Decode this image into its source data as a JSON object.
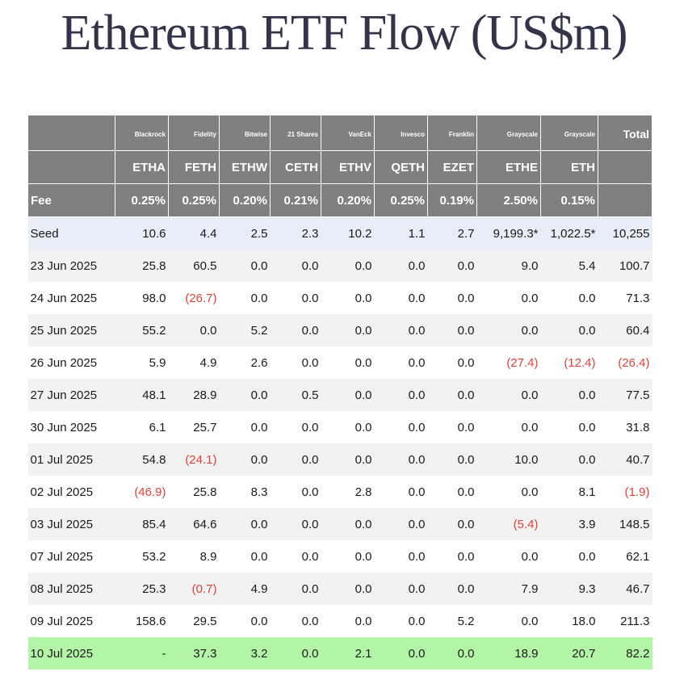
{
  "title": "Ethereum ETF Flow (US$m)",
  "colors": {
    "header_bg": "#808080",
    "negative": "#e0413a",
    "seed_bg": "#e8edf8",
    "highlight_bg": "#b2f5a6"
  },
  "columns": [
    {
      "issuer": "Blackrock",
      "ticker": "ETHA",
      "fee": "0.25%"
    },
    {
      "issuer": "Fidelity",
      "ticker": "FETH",
      "fee": "0.25%"
    },
    {
      "issuer": "Bitwise",
      "ticker": "ETHW",
      "fee": "0.20%"
    },
    {
      "issuer": "21 Shares",
      "ticker": "CETH",
      "fee": "0.21%"
    },
    {
      "issuer": "VanEck",
      "ticker": "ETHV",
      "fee": "0.20%"
    },
    {
      "issuer": "Invesco",
      "ticker": "QETH",
      "fee": "0.25%"
    },
    {
      "issuer": "Franklin",
      "ticker": "EZET",
      "fee": "0.19%"
    },
    {
      "issuer": "Grayscale",
      "ticker": "ETHE",
      "fee": "2.50%"
    },
    {
      "issuer": "Grayscale",
      "ticker": "ETH",
      "fee": "0.15%"
    }
  ],
  "total_label": "Total",
  "fee_label": "Fee",
  "rows": [
    {
      "date": "Seed",
      "values": [
        "10.6",
        "4.4",
        "2.5",
        "2.3",
        "10.2",
        "1.1",
        "2.7",
        "9,199.3*",
        "1,022.5*",
        "10,255"
      ]
    },
    {
      "date": "23 Jun 2025",
      "values": [
        "25.8",
        "60.5",
        "0.0",
        "0.0",
        "0.0",
        "0.0",
        "0.0",
        "9.0",
        "5.4",
        "100.7"
      ]
    },
    {
      "date": "24 Jun 2025",
      "values": [
        "98.0",
        "(26.7)",
        "0.0",
        "0.0",
        "0.0",
        "0.0",
        "0.0",
        "0.0",
        "0.0",
        "71.3"
      ]
    },
    {
      "date": "25 Jun 2025",
      "values": [
        "55.2",
        "0.0",
        "5.2",
        "0.0",
        "0.0",
        "0.0",
        "0.0",
        "0.0",
        "0.0",
        "60.4"
      ]
    },
    {
      "date": "26 Jun 2025",
      "values": [
        "5.9",
        "4.9",
        "2.6",
        "0.0",
        "0.0",
        "0.0",
        "0.0",
        "(27.4)",
        "(12.4)",
        "(26.4)"
      ]
    },
    {
      "date": "27 Jun 2025",
      "values": [
        "48.1",
        "28.9",
        "0.0",
        "0.5",
        "0.0",
        "0.0",
        "0.0",
        "0.0",
        "0.0",
        "77.5"
      ]
    },
    {
      "date": "30 Jun 2025",
      "values": [
        "6.1",
        "25.7",
        "0.0",
        "0.0",
        "0.0",
        "0.0",
        "0.0",
        "0.0",
        "0.0",
        "31.8"
      ]
    },
    {
      "date": "01 Jul 2025",
      "values": [
        "54.8",
        "(24.1)",
        "0.0",
        "0.0",
        "0.0",
        "0.0",
        "0.0",
        "10.0",
        "0.0",
        "40.7"
      ]
    },
    {
      "date": "02 Jul 2025",
      "values": [
        "(46.9)",
        "25.8",
        "8.3",
        "0.0",
        "2.8",
        "0.0",
        "0.0",
        "0.0",
        "8.1",
        "(1.9)"
      ]
    },
    {
      "date": "03 Jul 2025",
      "values": [
        "85.4",
        "64.6",
        "0.0",
        "0.0",
        "0.0",
        "0.0",
        "0.0",
        "(5.4)",
        "3.9",
        "148.5"
      ]
    },
    {
      "date": "07 Jul 2025",
      "values": [
        "53.2",
        "8.9",
        "0.0",
        "0.0",
        "0.0",
        "0.0",
        "0.0",
        "0.0",
        "0.0",
        "62.1"
      ]
    },
    {
      "date": "08 Jul 2025",
      "values": [
        "25.3",
        "(0.7)",
        "4.9",
        "0.0",
        "0.0",
        "0.0",
        "0.0",
        "7.9",
        "9.3",
        "46.7"
      ]
    },
    {
      "date": "09 Jul 2025",
      "values": [
        "158.6",
        "29.5",
        "0.0",
        "0.0",
        "0.0",
        "0.0",
        "5.2",
        "0.0",
        "18.0",
        "211.3"
      ]
    },
    {
      "date": "10 Jul 2025",
      "values": [
        "-",
        "37.3",
        "3.2",
        "0.0",
        "2.1",
        "0.0",
        "0.0",
        "18.9",
        "20.7",
        "82.2"
      ]
    }
  ]
}
